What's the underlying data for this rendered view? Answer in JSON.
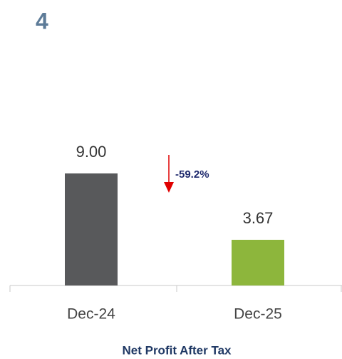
{
  "badge": "4",
  "chart_data": {
    "type": "bar",
    "title": "Net Profit After Tax",
    "categories": [
      "Dec-24",
      "Dec-25"
    ],
    "values": [
      9.0,
      3.67
    ],
    "value_labels": [
      "9.00",
      "3.67"
    ],
    "colors": [
      "#58595b",
      "#8db63c"
    ],
    "annotation": "-59.2%"
  }
}
